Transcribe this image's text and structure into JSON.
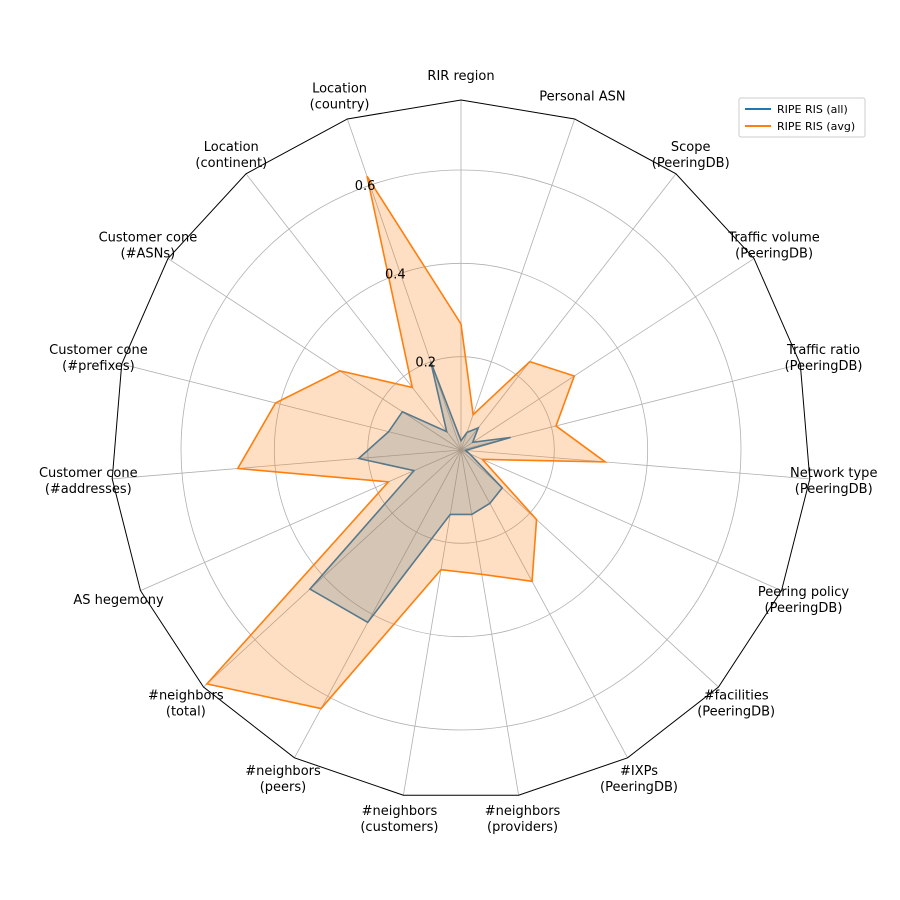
{
  "chart_data": {
    "type": "radar",
    "axes": [
      "RIR region",
      "Personal ASN",
      "Scope\n(PeeringDB)",
      "Traffic volume\n(PeeringDB)",
      "Traffic ratio\n(PeeringDB)",
      "Network type\n(PeeringDB)",
      "Peering policy\n(PeeringDB)",
      "#facilities\n(PeeringDB)",
      "#IXPs\n(PeeringDB)",
      "#neighbors\n(providers)",
      "#neighbors\n(customers)",
      "#neighbors\n(peers)",
      "#neighbors\n(total)",
      "AS hegemony",
      "Customer cone\n(#addresses)",
      "Customer cone\n(#prefixes)",
      "Customer cone\n(#ASNs)",
      "Location\n(continent)",
      "Location\n(country)"
    ],
    "rlim": [
      0,
      0.75
    ],
    "rticks": [
      0.2,
      0.4,
      0.6
    ],
    "rtick_labels": [
      "0.2",
      "0.4",
      "0.6"
    ],
    "grid": true,
    "legend_position": "top-right",
    "series": [
      {
        "name": "RIPE RIS (all)",
        "color": "#1f77b4",
        "values": [
          0.02,
          0.04,
          0.06,
          0.03,
          0.11,
          0.01,
          0.02,
          0.12,
          0.13,
          0.14,
          0.14,
          0.42,
          0.44,
          0.11,
          0.22,
          0.16,
          0.15,
          0.05,
          0.2
        ]
      },
      {
        "name": "RIPE RIS (avg)",
        "color": "#ff7f0e",
        "values": [
          0.27,
          0.08,
          0.24,
          0.29,
          0.21,
          0.31,
          0.05,
          0.22,
          0.32,
          0.27,
          0.26,
          0.63,
          0.74,
          0.17,
          0.48,
          0.41,
          0.31,
          0.17,
          0.62
        ]
      }
    ]
  }
}
